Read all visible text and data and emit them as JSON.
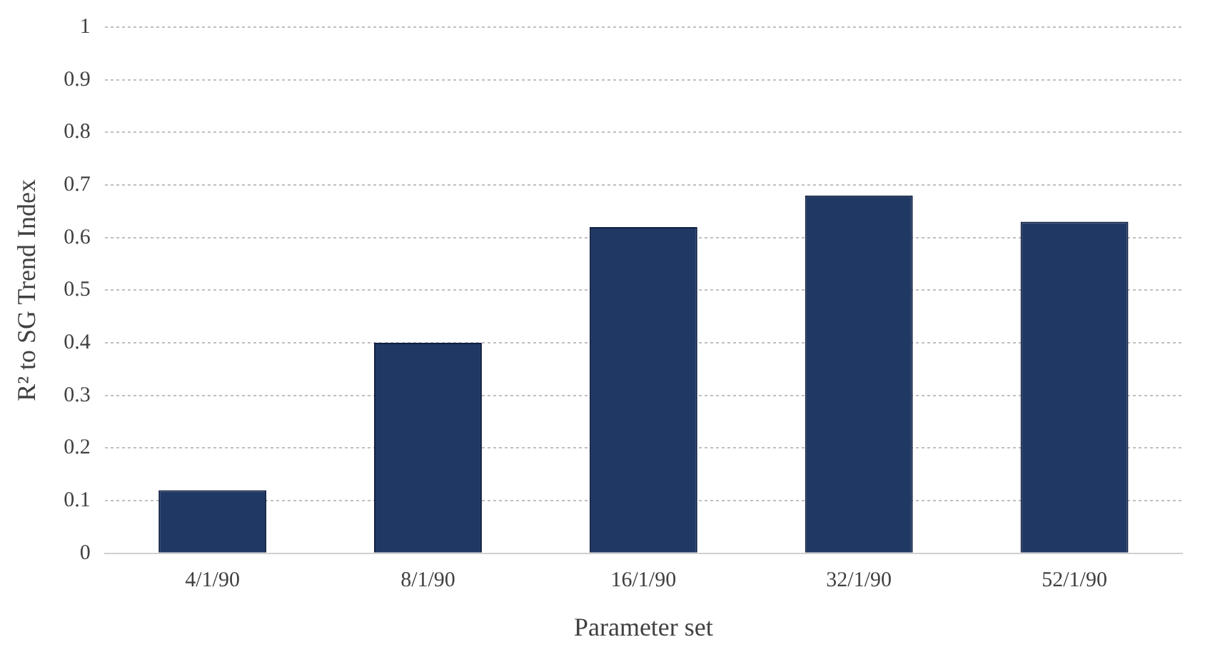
{
  "chart_data": {
    "type": "bar",
    "xlabel": "Parameter set",
    "ylabel": "R² to SG Trend Index",
    "categories": [
      "4/1/90",
      "8/1/90",
      "16/1/90",
      "32/1/90",
      "52/1/90"
    ],
    "values": [
      0.12,
      0.4,
      0.62,
      0.68,
      0.63
    ],
    "color": "#203864",
    "ylim": [
      0,
      1
    ],
    "yticks": [
      0,
      0.1,
      0.2,
      0.3,
      0.4,
      0.5,
      0.6,
      0.7,
      0.8,
      0.9,
      1
    ],
    "grid": "y",
    "legend": false
  }
}
